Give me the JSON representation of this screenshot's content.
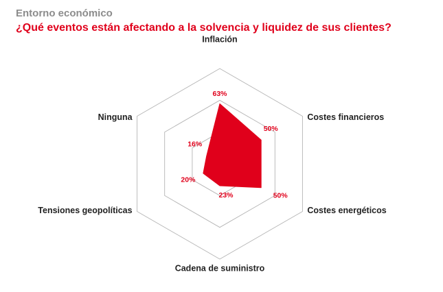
{
  "header": {
    "section": "Entorno económico",
    "question": "¿Qué eventos están afectando a la solvencia y liquidez de sus clientes?"
  },
  "colors": {
    "accent": "#e0001b",
    "section_text": "#8c8c8c",
    "grid": "#b4b4b4",
    "axis_text": "#222222"
  },
  "chart_data": {
    "type": "radar",
    "categories": [
      "Inflación",
      "Costes financieros",
      "Costes energéticos",
      "Cadena de suministro",
      "Tensiones geopolíticas",
      "Ninguna"
    ],
    "values": [
      63,
      50,
      50,
      23,
      20,
      16
    ],
    "value_labels": [
      "63%",
      "50%",
      "50%",
      "23%",
      "20%",
      "16%"
    ],
    "unit": "%",
    "rlim": [
      0,
      100
    ],
    "grid_levels": 3,
    "fill_color": "#e0001b",
    "label_color": "#e0001b"
  }
}
